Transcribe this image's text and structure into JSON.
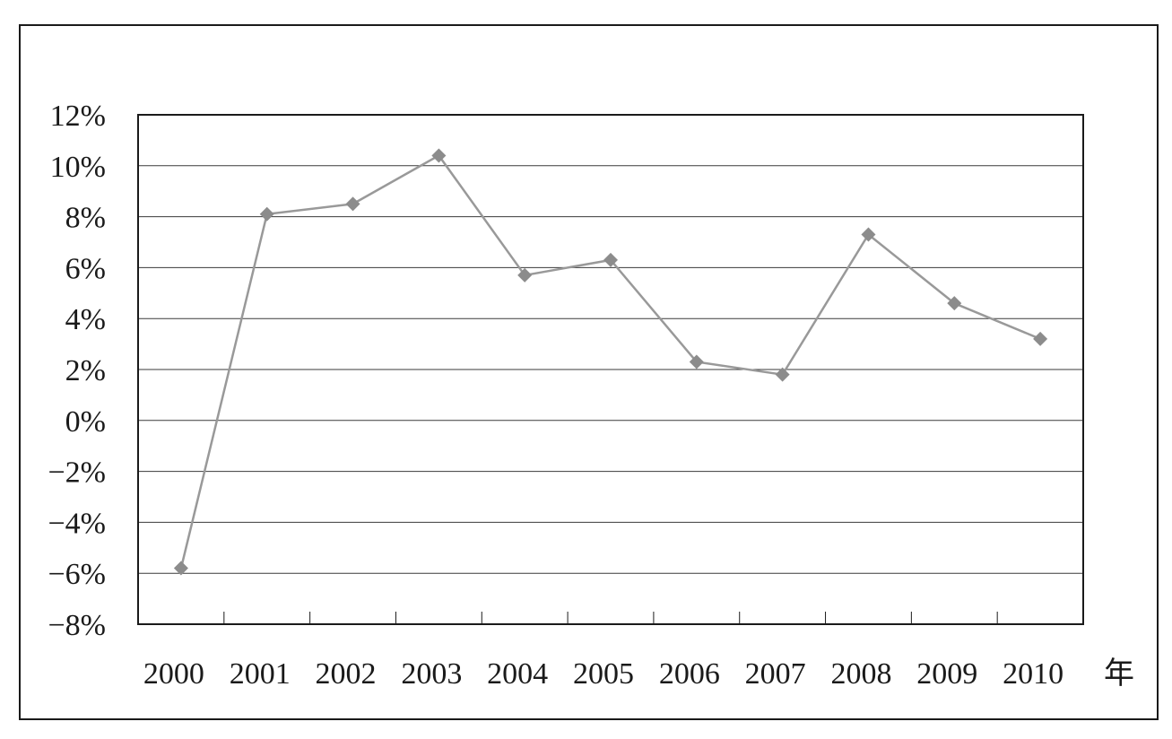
{
  "chart_data": {
    "type": "line",
    "title": "",
    "xlabel": "年",
    "ylabel": "",
    "categories": [
      "2000",
      "2001",
      "2002",
      "2003",
      "2004",
      "2005",
      "2006",
      "2007",
      "2008",
      "2009",
      "2010"
    ],
    "series": [
      {
        "values": [
          -5.8,
          8.1,
          8.5,
          10.4,
          5.7,
          6.3,
          2.3,
          1.8,
          7.3,
          4.6,
          3.2
        ]
      }
    ],
    "ylim": [
      -8,
      12
    ],
    "ytick_step": 2,
    "ytick_labels": [
      "12%",
      "10%",
      "8%",
      "6%",
      "4%",
      "2%",
      "0%",
      "−2%",
      "−4%",
      "−6%",
      "−8%"
    ],
    "grid": true,
    "legend": "none",
    "marker": "diamond",
    "colors": {
      "line": "#999999",
      "marker": "#8c8c8c",
      "grid": "#3a3a3a",
      "axis": "#1a1a1a"
    }
  }
}
